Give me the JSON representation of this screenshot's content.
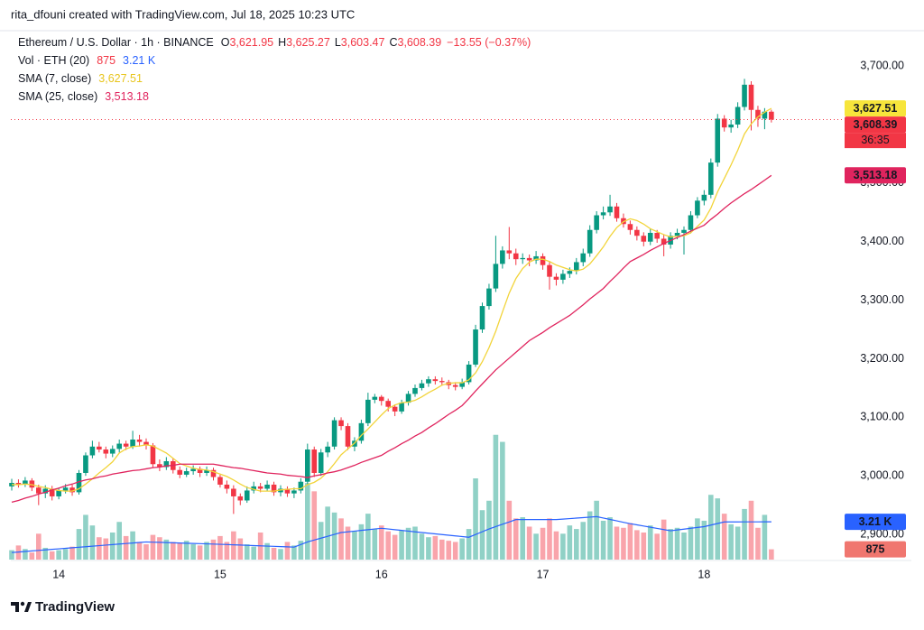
{
  "header": "rita_dfouni created with TradingView.com, Jul 18, 2025 10:23 UTC",
  "footer": "TradingView",
  "chart_data": {
    "type": "candlestick",
    "legend": {
      "title": "Ethereum / U.S. Dollar · 1h · BINANCE",
      "ohlc": [
        {
          "key": "O",
          "value": "3,621.95"
        },
        {
          "key": "H",
          "value": "3,625.27"
        },
        {
          "key": "L",
          "value": "3,603.47"
        },
        {
          "key": "C",
          "value": "3,608.39"
        }
      ],
      "change": "−13.55 (−0.37%)"
    },
    "up_color": "#089981",
    "down_color": "#f23645",
    "categories": [
      null,
      null,
      null,
      null,
      null,
      null,
      null,
      "14",
      null,
      null,
      null,
      null,
      null,
      null,
      null,
      null,
      null,
      null,
      null,
      null,
      null,
      null,
      null,
      null,
      null,
      null,
      null,
      null,
      null,
      null,
      null,
      "15",
      null,
      null,
      null,
      null,
      null,
      null,
      null,
      null,
      null,
      null,
      null,
      null,
      null,
      null,
      null,
      null,
      null,
      null,
      null,
      null,
      null,
      null,
      null,
      "16",
      null,
      null,
      null,
      null,
      null,
      null,
      null,
      null,
      null,
      null,
      null,
      null,
      null,
      null,
      null,
      null,
      null,
      null,
      null,
      null,
      null,
      null,
      null,
      "17",
      null,
      null,
      null,
      null,
      null,
      null,
      null,
      null,
      null,
      null,
      null,
      null,
      null,
      null,
      null,
      null,
      null,
      null,
      null,
      null,
      null,
      null,
      null,
      "18",
      null,
      null,
      null,
      null,
      null,
      null,
      null,
      null,
      null,
      null
    ],
    "open": [
      2982,
      2988,
      2985,
      2992,
      2980,
      2970,
      2978,
      2965,
      2975,
      2980,
      2972,
      3005,
      3035,
      3050,
      3045,
      3038,
      3046,
      3055,
      3050,
      3062,
      3058,
      3052,
      3020,
      3015,
      3025,
      3010,
      3002,
      3008,
      3012,
      3005,
      3010,
      2998,
      2985,
      2978,
      2965,
      2958,
      2975,
      2982,
      2978,
      2985,
      2972,
      2978,
      2970,
      2975,
      2990,
      3045,
      3005,
      3040,
      3050,
      3095,
      3085,
      3050,
      3060,
      3090,
      3130,
      3135,
      3128,
      3118,
      3110,
      3125,
      3140,
      3150,
      3158,
      3165,
      3162,
      3160,
      3155,
      3152,
      3160,
      3190,
      3250,
      3290,
      3320,
      3362,
      3385,
      3380,
      3370,
      3372,
      3368,
      3375,
      3360,
      3340,
      3335,
      3345,
      3350,
      3365,
      3380,
      3420,
      3445,
      3450,
      3460,
      3440,
      3430,
      3420,
      3410,
      3400,
      3415,
      3405,
      3395,
      3410,
      3415,
      3420,
      3445,
      3470,
      3480,
      3535,
      3610,
      3595,
      3600,
      3630,
      3668,
      3625,
      3610,
      3621.95
    ],
    "high": [
      2995,
      2994,
      2998,
      2996,
      2985,
      2984,
      2983,
      2980,
      2986,
      2985,
      3010,
      3040,
      3060,
      3058,
      3050,
      3052,
      3062,
      3060,
      3077,
      3070,
      3064,
      3056,
      3028,
      3032,
      3030,
      3016,
      3014,
      3018,
      3016,
      3016,
      3014,
      3002,
      2992,
      2984,
      2970,
      2982,
      2990,
      2988,
      2992,
      2990,
      2984,
      2982,
      2980,
      2996,
      3055,
      3050,
      3046,
      3058,
      3100,
      3100,
      3090,
      3066,
      3096,
      3142,
      3140,
      3138,
      3132,
      3122,
      3130,
      3145,
      3156,
      3164,
      3170,
      3170,
      3168,
      3164,
      3160,
      3166,
      3196,
      3258,
      3296,
      3328,
      3410,
      3392,
      3425,
      3388,
      3380,
      3378,
      3384,
      3380,
      3366,
      3346,
      3352,
      3356,
      3372,
      3388,
      3428,
      3452,
      3460,
      3480,
      3466,
      3448,
      3436,
      3426,
      3416,
      3422,
      3420,
      3412,
      3416,
      3422,
      3426,
      3452,
      3476,
      3488,
      3542,
      3618,
      3616,
      3608,
      3638,
      3678,
      3674,
      3632,
      3628,
      3625.27
    ],
    "low": [
      2975,
      2980,
      2981,
      2974,
      2950,
      2962,
      2958,
      2960,
      2970,
      2966,
      2968,
      3000,
      3030,
      3040,
      3030,
      3032,
      3040,
      3044,
      3046,
      3050,
      3045,
      3014,
      3008,
      3010,
      3004,
      2996,
      2998,
      3002,
      2998,
      3000,
      2992,
      2980,
      2970,
      2935,
      2950,
      2954,
      2970,
      2972,
      2974,
      2966,
      2965,
      2964,
      2962,
      2970,
      2985,
      2998,
      3000,
      3032,
      3045,
      3078,
      3044,
      3042,
      3055,
      3085,
      3124,
      3120,
      3110,
      3102,
      3106,
      3120,
      3135,
      3146,
      3152,
      3156,
      3154,
      3148,
      3146,
      3148,
      3156,
      3186,
      3244,
      3284,
      3314,
      3354,
      3370,
      3360,
      3362,
      3358,
      3362,
      3352,
      3318,
      3325,
      3328,
      3338,
      3344,
      3358,
      3374,
      3414,
      3438,
      3444,
      3434,
      3424,
      3412,
      3402,
      3392,
      3394,
      3398,
      3375,
      3388,
      3404,
      3378,
      3414,
      3440,
      3462,
      3474,
      3528,
      3588,
      3586,
      3594,
      3624,
      3590,
      3596,
      3592,
      3603.47
    ],
    "close": [
      2988,
      2985,
      2992,
      2980,
      2970,
      2978,
      2965,
      2975,
      2980,
      2972,
      3005,
      3035,
      3050,
      3045,
      3038,
      3046,
      3055,
      3050,
      3062,
      3058,
      3052,
      3020,
      3015,
      3025,
      3010,
      3002,
      3008,
      3012,
      3005,
      3010,
      2998,
      2985,
      2978,
      2965,
      2958,
      2975,
      2982,
      2978,
      2985,
      2972,
      2978,
      2970,
      2975,
      2990,
      3045,
      3005,
      3040,
      3050,
      3095,
      3085,
      3050,
      3060,
      3090,
      3130,
      3135,
      3128,
      3118,
      3110,
      3125,
      3140,
      3150,
      3158,
      3165,
      3162,
      3160,
      3155,
      3152,
      3160,
      3190,
      3250,
      3290,
      3320,
      3362,
      3385,
      3380,
      3370,
      3372,
      3368,
      3375,
      3360,
      3340,
      3335,
      3345,
      3350,
      3365,
      3380,
      3420,
      3445,
      3450,
      3460,
      3440,
      3430,
      3420,
      3410,
      3400,
      3415,
      3405,
      3395,
      3410,
      3415,
      3420,
      3445,
      3470,
      3480,
      3535,
      3610,
      3595,
      3600,
      3630,
      3668,
      3625,
      3610,
      3621.95,
      3608.39
    ],
    "volume": [
      800,
      1200,
      900,
      600,
      2200,
      1000,
      700,
      800,
      900,
      1100,
      2600,
      3800,
      2900,
      1900,
      1800,
      2300,
      3200,
      2000,
      2400,
      1500,
      1300,
      2100,
      1900,
      1700,
      1500,
      1400,
      1600,
      1300,
      1200,
      1500,
      1700,
      2000,
      1500,
      2400,
      1800,
      1300,
      1100,
      2300,
      1400,
      1000,
      900,
      1500,
      1200,
      1600,
      6500,
      5800,
      3200,
      4500,
      4000,
      3500,
      2800,
      2400,
      3000,
      3900,
      2600,
      2900,
      2400,
      2100,
      2500,
      2700,
      2800,
      2200,
      1900,
      2000,
      1700,
      1600,
      1500,
      1800,
      2600,
      6900,
      4200,
      5000,
      10600,
      10000,
      5000,
      3500,
      3600,
      2800,
      2200,
      2700,
      3500,
      2400,
      2200,
      2900,
      2600,
      3200,
      4100,
      5000,
      3300,
      3600,
      2800,
      2700,
      3100,
      2500,
      2300,
      2900,
      2200,
      3400,
      2600,
      2700,
      2300,
      2800,
      3500,
      3300,
      5500,
      5200,
      3900,
      3000,
      2800,
      4300,
      5000,
      2700,
      3800,
      875
    ],
    "volume_ylim": [
      0,
      11500
    ],
    "series": [
      {
        "name": "Vol · ETH (20)",
        "color": "#2962ff",
        "axis": "volume",
        "last_labels": [
          {
            "label": "875",
            "color": "#f23645"
          },
          {
            "label": "3.21 K",
            "color": "#2962ff"
          }
        ],
        "values": [
          600,
          645,
          690,
          735,
          780,
          825,
          870,
          915,
          960,
          1005,
          1050,
          1095,
          1140,
          1185,
          1230,
          1275,
          1320,
          1365,
          1410,
          1455,
          1500,
          1482,
          1464,
          1445,
          1427,
          1409,
          1391,
          1373,
          1355,
          1336,
          1318,
          1300,
          1278,
          1256,
          1234,
          1212,
          1190,
          1169,
          1147,
          1125,
          1103,
          1081,
          1060,
          1280,
          1500,
          1660,
          1820,
          1980,
          2140,
          2300,
          2360,
          2420,
          2480,
          2540,
          2600,
          2660,
          2600,
          2540,
          2480,
          2420,
          2360,
          2300,
          2243,
          2186,
          2129,
          2071,
          2014,
          1957,
          1900,
          2133,
          2367,
          2600,
          2800,
          3000,
          3200,
          3400,
          3400,
          3400,
          3400,
          3400,
          3400,
          3400,
          3442,
          3483,
          3525,
          3567,
          3608,
          3650,
          3530,
          3410,
          3290,
          3170,
          3050,
          2950,
          2850,
          2750,
          2650,
          2550,
          2450,
          2520,
          2590,
          2660,
          2730,
          2800,
          2933,
          3067,
          3200,
          3201,
          3203,
          3204,
          3206,
          3207,
          3209,
          3210
        ]
      },
      {
        "name": "SMA (7, close)",
        "color": "#f2d43a",
        "last_labels": [
          {
            "label": "3,627.51",
            "color": "#e8c51c"
          }
        ],
        "values": [
          2985,
          2985,
          2986,
          2985,
          2982,
          2980,
          2977,
          2975,
          2974,
          2974,
          2978,
          2986,
          2995,
          3005,
          3014,
          3024,
          3039,
          3046,
          3050,
          3051,
          3053,
          3051,
          3045,
          3039,
          3030,
          3021,
          3017,
          3013,
          3011,
          3010,
          3007,
          3003,
          2999,
          2993,
          2986,
          2980,
          2977,
          2974,
          2974,
          2974,
          2976,
          2977,
          2978,
          2978,
          2985,
          2989,
          2996,
          3007,
          3021,
          3036,
          3046,
          3056,
          3069,
          3080,
          3092,
          3104,
          3115,
          3121,
          3125,
          3126,
          3129,
          3135,
          3142,
          3148,
          3155,
          3158,
          3159,
          3159,
          3164,
          3176,
          3195,
          3219,
          3247,
          3280,
          3312,
          3337,
          3354,
          3365,
          3370,
          3370,
          3366,
          3360,
          3356,
          3352,
          3350,
          3353,
          3362,
          3376,
          3391,
          3409,
          3424,
          3434,
          3439,
          3436,
          3430,
          3422,
          3417,
          3412,
          3408,
          3409,
          3410,
          3415,
          3426,
          3437,
          3457,
          3485,
          3508,
          3531,
          3556,
          3584,
          3601,
          3613,
          3621,
          3627.51
        ]
      },
      {
        "name": "SMA (25, close)",
        "color": "#e0245e",
        "last_labels": [
          {
            "label": "3,513.18",
            "color": "#e0245e"
          }
        ],
        "values": [
          2955,
          2958,
          2962,
          2965,
          2969,
          2972,
          2976,
          2979,
          2983,
          2986,
          2990,
          2993,
          2995,
          2998,
          3000,
          3003,
          3005,
          3007,
          3009,
          3010,
          3012,
          3014,
          3015,
          3017,
          3018,
          3020,
          3020,
          3020,
          3020,
          3020,
          3020,
          3018,
          3016,
          3014,
          3013,
          3011,
          3009,
          3007,
          3005,
          3004,
          3003,
          3001,
          3000,
          2999,
          2997,
          3000,
          3002,
          3005,
          3007,
          3010,
          3014,
          3018,
          3023,
          3027,
          3031,
          3035,
          3042,
          3048,
          3055,
          3061,
          3068,
          3074,
          3082,
          3089,
          3097,
          3105,
          3112,
          3120,
          3132,
          3145,
          3157,
          3169,
          3181,
          3191,
          3201,
          3211,
          3221,
          3231,
          3238,
          3245,
          3253,
          3260,
          3267,
          3274,
          3283,
          3292,
          3302,
          3311,
          3320,
          3332,
          3343,
          3355,
          3366,
          3372,
          3378,
          3385,
          3391,
          3397,
          3402,
          3407,
          3412,
          3418,
          3423,
          3428,
          3438,
          3447,
          3457,
          3466,
          3474,
          3482,
          3489,
          3497,
          3505,
          3513.18
        ]
      }
    ],
    "ylim": [
      2857,
      3751
    ],
    "yticks": [
      {
        "value": 2900,
        "label": "2,900.00"
      },
      {
        "value": 3000,
        "label": "3,000.00"
      },
      {
        "value": 3100,
        "label": "3,100.00"
      },
      {
        "value": 3200,
        "label": "3,200.00"
      },
      {
        "value": 3300,
        "label": "3,300.00"
      },
      {
        "value": 3400,
        "label": "3,400.00"
      },
      {
        "value": 3500,
        "label": "3,500.00"
      },
      {
        "value": 3600,
        "label": "3,600.00"
      },
      {
        "value": 3700,
        "label": "3,700.00"
      }
    ],
    "grid": false,
    "last_price_line": {
      "value": 3608.39,
      "color": "#f23645"
    },
    "price_labels": [
      {
        "value": 3627.51,
        "label": "3,627.51",
        "color": "#f7e53b",
        "text_color": "#131722"
      },
      {
        "value": 3608.39,
        "label": "3,608.39",
        "countdown": "36:35",
        "color": "#f23645",
        "text_color": "#ffffff"
      },
      {
        "value": 3513.18,
        "label": "3,513.18",
        "color": "#e0245e",
        "text_color": "#ffffff"
      }
    ],
    "volume_labels": [
      {
        "value": 3210,
        "label": "3.21 K",
        "color": "#2962ff",
        "text_color": "#ffffff"
      },
      {
        "value": 875,
        "label": "875",
        "color": "#f0766f",
        "text_color": "#ffffff"
      }
    ]
  }
}
